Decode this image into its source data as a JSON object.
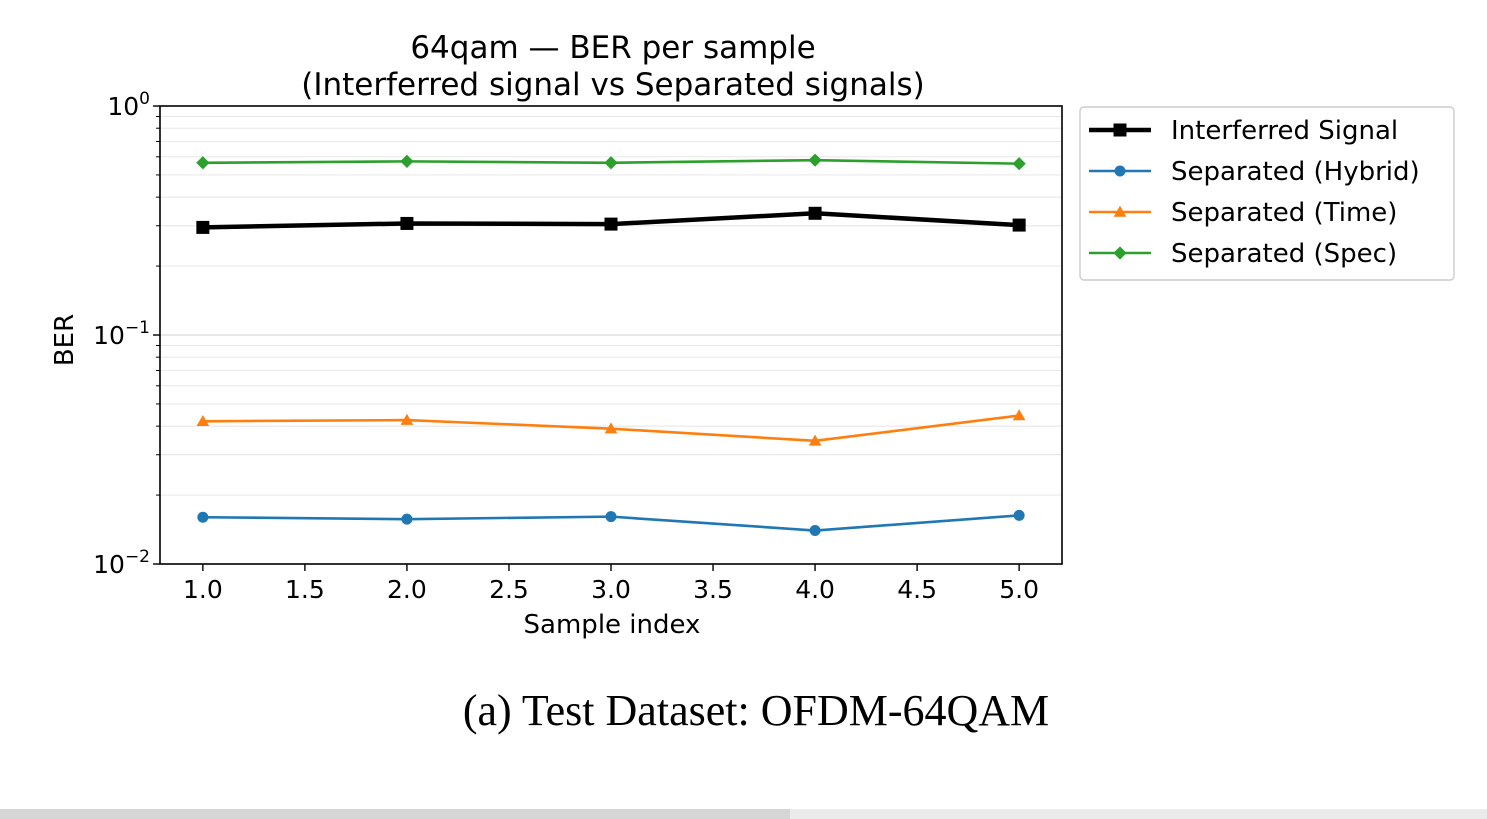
{
  "chart_data": {
    "type": "line",
    "title": "64qam — BER per sample",
    "subtitle": "(Interferred signal vs Separated signals)",
    "xlabel": "Sample index",
    "ylabel": "BER",
    "yscale": "log",
    "xlim": [
      0.79,
      5.21
    ],
    "ylim": [
      0.01,
      1.0
    ],
    "grid": true,
    "grid_axis": "y",
    "legend_position": "outside right, top",
    "x": [
      1.0,
      2.0,
      3.0,
      4.0,
      5.0
    ],
    "x_ticks": [
      "1.0",
      "1.5",
      "2.0",
      "2.5",
      "3.0",
      "3.5",
      "4.0",
      "4.5",
      "5.0"
    ],
    "y_ticks": [
      {
        "base": "10",
        "exp": "0"
      },
      {
        "base": "10",
        "exp": "−1"
      },
      {
        "base": "10",
        "exp": "−2"
      }
    ],
    "series": [
      {
        "name": "Interferred Signal",
        "values": [
          0.295,
          0.307,
          0.305,
          0.34,
          0.302
        ],
        "color": "#000000",
        "marker": "square"
      },
      {
        "name": "Separated (Hybrid)",
        "values": [
          0.016,
          0.0157,
          0.0161,
          0.014,
          0.0163
        ],
        "color": "#1f77b4",
        "marker": "circle"
      },
      {
        "name": "Separated (Time)",
        "values": [
          0.042,
          0.0425,
          0.039,
          0.0345,
          0.0445
        ],
        "color": "#ff7f0e",
        "marker": "triangle"
      },
      {
        "name": "Separated (Spec)",
        "values": [
          0.565,
          0.573,
          0.565,
          0.58,
          0.56
        ],
        "color": "#2ca02c",
        "marker": "diamond"
      }
    ]
  },
  "caption": "(a) Test Dataset: OFDM-64QAM"
}
